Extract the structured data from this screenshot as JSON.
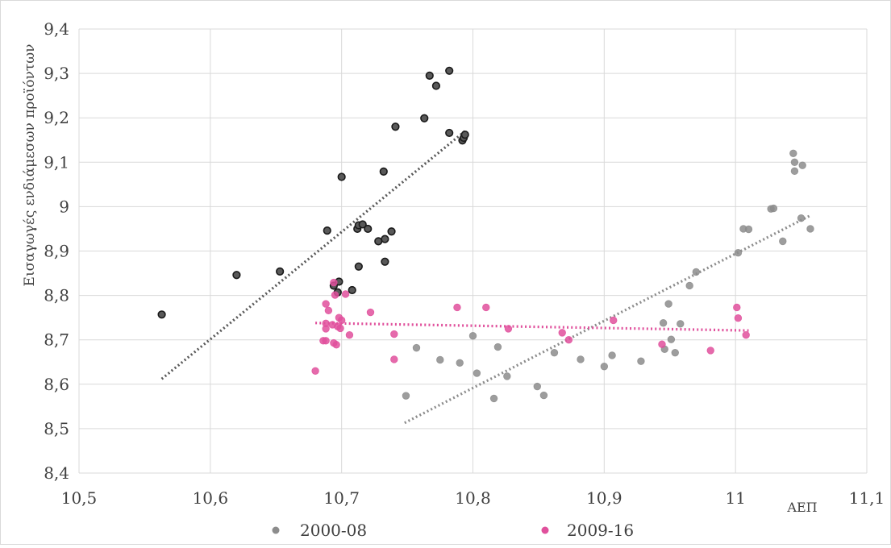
{
  "chart_data": {
    "type": "scatter",
    "xlabel": "ΑΕΠ",
    "ylabel": "Εισαγωγές ενδιάμεσων προϊόντων",
    "xlim": [
      10.5,
      11.1
    ],
    "ylim": [
      8.4,
      9.4
    ],
    "x_ticks": [
      "10,5",
      "10,6",
      "10,7",
      "10,8",
      "10,9",
      "11",
      "11,1"
    ],
    "y_ticks": [
      "8,4",
      "8,5",
      "8,6",
      "8,7",
      "8,8",
      "8,9",
      "9",
      "9,1",
      "9,2",
      "9,3",
      "9,4"
    ],
    "grid": true,
    "legend_position": "bottom",
    "legend": [
      {
        "label": "2000-08",
        "color": "#8c8c8c"
      },
      {
        "label": "2009-16",
        "color": "#e0509c"
      }
    ],
    "series": [
      {
        "name": "",
        "color": "#595959",
        "edge": "#1a1a1a",
        "points": [
          [
            10.563,
            8.757
          ],
          [
            10.62,
            8.846
          ],
          [
            10.653,
            8.854
          ],
          [
            10.689,
            8.946
          ],
          [
            10.694,
            8.822
          ],
          [
            10.698,
            8.831
          ],
          [
            10.697,
            8.807
          ],
          [
            10.7,
            9.067
          ],
          [
            10.708,
            8.812
          ],
          [
            10.712,
            8.95
          ],
          [
            10.713,
            8.958
          ],
          [
            10.716,
            8.96
          ],
          [
            10.72,
            8.95
          ],
          [
            10.713,
            8.865
          ],
          [
            10.728,
            8.922
          ],
          [
            10.732,
            9.079
          ],
          [
            10.733,
            8.927
          ],
          [
            10.733,
            8.876
          ],
          [
            10.738,
            8.944
          ],
          [
            10.741,
            9.18
          ],
          [
            10.763,
            9.199
          ],
          [
            10.767,
            9.295
          ],
          [
            10.772,
            9.272
          ],
          [
            10.782,
            9.306
          ],
          [
            10.782,
            9.166
          ],
          [
            10.792,
            9.149
          ],
          [
            10.793,
            9.155
          ],
          [
            10.794,
            9.162
          ]
        ],
        "trend": [
          [
            10.563,
            8.612
          ],
          [
            10.794,
            9.17
          ]
        ]
      },
      {
        "name": "2000-08",
        "color": "#8c8c8c",
        "edge": "#8c8c8c",
        "points": [
          [
            10.749,
            8.574
          ],
          [
            10.757,
            8.682
          ],
          [
            10.775,
            8.655
          ],
          [
            10.79,
            8.648
          ],
          [
            10.8,
            8.709
          ],
          [
            10.803,
            8.625
          ],
          [
            10.816,
            8.568
          ],
          [
            10.819,
            8.684
          ],
          [
            10.826,
            8.618
          ],
          [
            10.849,
            8.595
          ],
          [
            10.854,
            8.575
          ],
          [
            10.862,
            8.671
          ],
          [
            10.882,
            8.656
          ],
          [
            10.9,
            8.64
          ],
          [
            10.906,
            8.665
          ],
          [
            10.928,
            8.652
          ],
          [
            10.945,
            8.738
          ],
          [
            10.946,
            8.679
          ],
          [
            10.949,
            8.781
          ],
          [
            10.951,
            8.701
          ],
          [
            10.954,
            8.671
          ],
          [
            10.958,
            8.736
          ],
          [
            10.965,
            8.822
          ],
          [
            10.97,
            8.853
          ],
          [
            11.002,
            8.896
          ],
          [
            11.006,
            8.95
          ],
          [
            11.01,
            8.949
          ],
          [
            11.027,
            8.995
          ],
          [
            11.029,
            8.996
          ],
          [
            11.036,
            8.922
          ],
          [
            11.044,
            9.12
          ],
          [
            11.045,
            9.1
          ],
          [
            11.045,
            9.08
          ],
          [
            11.05,
            8.974
          ],
          [
            11.051,
            9.093
          ],
          [
            11.057,
            8.95
          ]
        ],
        "trend": [
          [
            10.748,
            8.513
          ],
          [
            11.057,
            8.98
          ]
        ]
      },
      {
        "name": "2009-16",
        "color": "#e0509c",
        "edge": "#e0509c",
        "points": [
          [
            10.68,
            8.63
          ],
          [
            10.686,
            8.698
          ],
          [
            10.688,
            8.698
          ],
          [
            10.688,
            8.781
          ],
          [
            10.688,
            8.737
          ],
          [
            10.688,
            8.725
          ],
          [
            10.69,
            8.766
          ],
          [
            10.693,
            8.734
          ],
          [
            10.694,
            8.829
          ],
          [
            10.694,
            8.693
          ],
          [
            10.695,
            8.801
          ],
          [
            10.696,
            8.689
          ],
          [
            10.697,
            8.73
          ],
          [
            10.698,
            8.75
          ],
          [
            10.699,
            8.726
          ],
          [
            10.7,
            8.744
          ],
          [
            10.703,
            8.803
          ],
          [
            10.706,
            8.711
          ],
          [
            10.722,
            8.762
          ],
          [
            10.74,
            8.713
          ],
          [
            10.74,
            8.656
          ],
          [
            10.788,
            8.773
          ],
          [
            10.81,
            8.773
          ],
          [
            10.827,
            8.725
          ],
          [
            10.868,
            8.716
          ],
          [
            10.873,
            8.7
          ],
          [
            10.907,
            8.744
          ],
          [
            10.944,
            8.69
          ],
          [
            10.981,
            8.676
          ],
          [
            11.001,
            8.773
          ],
          [
            11.002,
            8.749
          ],
          [
            11.008,
            8.711
          ]
        ],
        "trend": [
          [
            10.68,
            8.738
          ],
          [
            11.01,
            8.721
          ]
        ]
      }
    ]
  }
}
